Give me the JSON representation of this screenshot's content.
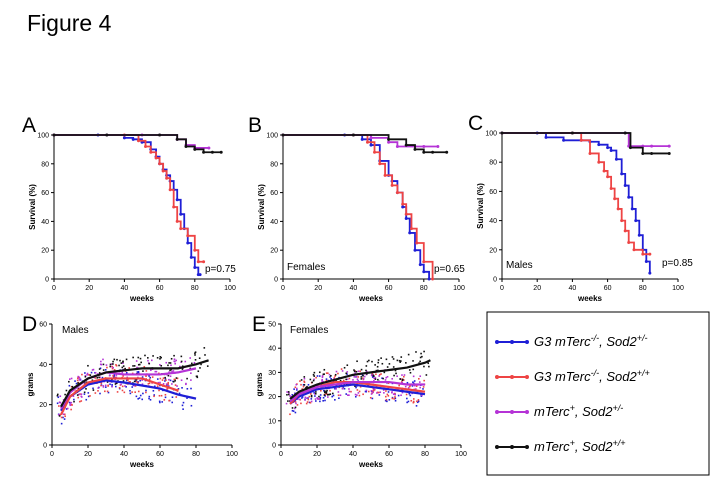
{
  "figure": {
    "title": "Figure 4"
  },
  "colors": {
    "g3_het": "#1f1fd6",
    "g3_wt": "#ee4444",
    "m_het": "#b533d6",
    "m_wt": "#111111"
  },
  "chart_data": [
    {
      "id": "A",
      "type": "line",
      "panel_label": "A",
      "xlabel": "weeks",
      "ylabel": "Survival (%)",
      "xlim": [
        0,
        100
      ],
      "ylim": [
        0,
        100
      ],
      "xticks": [
        0,
        20,
        40,
        60,
        80,
        100
      ],
      "yticks": [
        0,
        20,
        40,
        60,
        80,
        100
      ],
      "annotation": "p=0.75",
      "subtitle": "",
      "series": [
        {
          "name": "G3 mTerc-/-, Sod2+/-",
          "color_key": "g3_het",
          "x": [
            0,
            25,
            40,
            45,
            50,
            55,
            58,
            60,
            62,
            64,
            66,
            68,
            70,
            72,
            74,
            76,
            78,
            80,
            82,
            83
          ],
          "y": [
            100,
            100,
            98,
            97,
            95,
            90,
            85,
            80,
            76,
            72,
            68,
            62,
            55,
            45,
            35,
            25,
            15,
            8,
            3,
            3
          ]
        },
        {
          "name": "G3 mTerc-/-, Sod2+/+",
          "color_key": "g3_wt",
          "x": [
            0,
            40,
            48,
            52,
            55,
            58,
            60,
            62,
            64,
            66,
            68,
            70,
            72,
            76,
            80,
            82,
            85
          ],
          "y": [
            100,
            100,
            96,
            92,
            88,
            84,
            80,
            75,
            70,
            62,
            50,
            40,
            35,
            30,
            20,
            12,
            12
          ]
        },
        {
          "name": "mTerc+, Sod2+/-",
          "color_key": "m_het",
          "x": [
            0,
            30,
            50,
            60,
            70,
            75,
            80,
            88
          ],
          "y": [
            100,
            100,
            100,
            100,
            97,
            93,
            91,
            91
          ]
        },
        {
          "name": "mTerc+, Sod2+/+",
          "color_key": "m_wt",
          "x": [
            0,
            30,
            60,
            70,
            75,
            80,
            85,
            90,
            95
          ],
          "y": [
            100,
            100,
            100,
            97,
            92,
            90,
            88,
            88,
            88
          ]
        }
      ]
    },
    {
      "id": "B",
      "type": "line",
      "panel_label": "B",
      "xlabel": "weeks",
      "ylabel": "Survival (%)",
      "xlim": [
        0,
        100
      ],
      "ylim": [
        0,
        100
      ],
      "xticks": [
        0,
        20,
        40,
        60,
        80,
        100
      ],
      "yticks": [
        0,
        20,
        40,
        60,
        80,
        100
      ],
      "annotation": "p=0.65",
      "subtitle": "Females",
      "series": [
        {
          "name": "G3 mTerc-/-, Sod2+/-",
          "color_key": "g3_het",
          "x": [
            0,
            35,
            45,
            50,
            55,
            60,
            62,
            65,
            68,
            70,
            72,
            75,
            78,
            80,
            83
          ],
          "y": [
            100,
            100,
            97,
            93,
            82,
            72,
            68,
            60,
            50,
            42,
            32,
            20,
            10,
            5,
            0
          ]
        },
        {
          "name": "G3 mTerc-/-, Sod2+/+",
          "color_key": "g3_wt",
          "x": [
            0,
            40,
            48,
            52,
            55,
            58,
            62,
            65,
            68,
            70,
            73,
            76,
            80,
            85
          ],
          "y": [
            100,
            100,
            95,
            88,
            80,
            72,
            65,
            60,
            52,
            45,
            35,
            25,
            12,
            0
          ]
        },
        {
          "name": "mTerc+, Sod2+/-",
          "color_key": "m_het",
          "x": [
            0,
            40,
            50,
            60,
            65,
            75,
            80,
            88
          ],
          "y": [
            100,
            100,
            98,
            95,
            92,
            92,
            92,
            92
          ]
        },
        {
          "name": "mTerc+, Sod2+/+",
          "color_key": "m_wt",
          "x": [
            0,
            40,
            60,
            70,
            75,
            80,
            85,
            93
          ],
          "y": [
            100,
            100,
            97,
            93,
            90,
            88,
            88,
            88
          ]
        }
      ]
    },
    {
      "id": "C",
      "type": "line",
      "panel_label": "C",
      "xlabel": "weeks",
      "ylabel": "Survival (%)",
      "xlim": [
        0,
        100
      ],
      "ylim": [
        0,
        100
      ],
      "xticks": [
        0,
        20,
        40,
        60,
        80,
        100
      ],
      "yticks": [
        0,
        20,
        40,
        60,
        80,
        100
      ],
      "annotation": "p=0.85",
      "subtitle": "Males",
      "series": [
        {
          "name": "G3 mTerc-/-, Sod2+/-",
          "color_key": "g3_het",
          "x": [
            0,
            20,
            25,
            35,
            45,
            50,
            55,
            60,
            62,
            65,
            68,
            70,
            72,
            74,
            76,
            78,
            80,
            82,
            84
          ],
          "y": [
            100,
            100,
            97,
            95,
            95,
            94,
            92,
            90,
            88,
            82,
            72,
            64,
            56,
            48,
            40,
            30,
            20,
            12,
            4
          ]
        },
        {
          "name": "G3 mTerc-/-, Sod2+/+",
          "color_key": "g3_wt",
          "x": [
            0,
            40,
            45,
            50,
            55,
            58,
            60,
            62,
            64,
            66,
            68,
            70,
            72,
            75,
            80,
            84
          ],
          "y": [
            100,
            100,
            95,
            86,
            80,
            74,
            70,
            62,
            55,
            48,
            40,
            33,
            25,
            20,
            17,
            17
          ]
        },
        {
          "name": "mTerc+, Sod2+/-",
          "color_key": "m_het",
          "x": [
            0,
            40,
            70,
            72,
            80,
            85,
            95
          ],
          "y": [
            100,
            100,
            100,
            91,
            91,
            91,
            91
          ]
        },
        {
          "name": "mTerc+, Sod2+/+",
          "color_key": "m_wt",
          "x": [
            0,
            40,
            70,
            73,
            80,
            85,
            95
          ],
          "y": [
            100,
            100,
            100,
            90,
            86,
            86,
            86
          ]
        }
      ]
    },
    {
      "id": "D",
      "type": "scatter",
      "panel_label": "D",
      "xlabel": "weeks",
      "ylabel": "grams",
      "xlim": [
        0,
        100
      ],
      "ylim": [
        0,
        60
      ],
      "xticks": [
        0,
        20,
        40,
        60,
        80,
        100
      ],
      "yticks": [
        0,
        20,
        40,
        60
      ],
      "annotation": "",
      "subtitle": "Males",
      "series": [
        {
          "name": "G3 mTerc-/-, Sod2+/-",
          "color_key": "g3_het",
          "x": [
            5,
            10,
            20,
            30,
            40,
            50,
            60,
            70,
            80
          ],
          "y": [
            17,
            24,
            30,
            32,
            31,
            29.5,
            28,
            25,
            23
          ]
        },
        {
          "name": "G3 mTerc-/-, Sod2+/+",
          "color_key": "g3_wt",
          "x": [
            5,
            10,
            20,
            30,
            40,
            50,
            60,
            70
          ],
          "y": [
            15,
            24,
            31,
            33,
            33,
            33,
            30,
            27
          ]
        },
        {
          "name": "mTerc+, Sod2+/-",
          "color_key": "m_het",
          "x": [
            5,
            10,
            20,
            30,
            40,
            50,
            60,
            70,
            80
          ],
          "y": [
            18,
            26,
            33,
            36,
            35,
            35,
            35,
            36,
            38
          ]
        },
        {
          "name": "mTerc+, Sod2+/+",
          "color_key": "m_wt",
          "x": [
            5,
            10,
            20,
            30,
            40,
            50,
            60,
            70,
            80,
            87
          ],
          "y": [
            19,
            27,
            33,
            36,
            37,
            38,
            38,
            38,
            40,
            42
          ]
        }
      ]
    },
    {
      "id": "E",
      "type": "scatter",
      "panel_label": "E",
      "xlabel": "weeks",
      "ylabel": "grams",
      "xlim": [
        0,
        100
      ],
      "ylim": [
        0,
        50
      ],
      "xticks": [
        0,
        20,
        40,
        60,
        80,
        100
      ],
      "yticks": [
        0,
        10,
        20,
        30,
        40,
        50
      ],
      "annotation": "",
      "subtitle": "Females",
      "series": [
        {
          "name": "G3 mTerc-/-, Sod2+/-",
          "color_key": "g3_het",
          "x": [
            5,
            10,
            20,
            30,
            40,
            50,
            60,
            70,
            80
          ],
          "y": [
            17,
            20,
            23,
            24,
            25,
            24,
            23,
            22,
            21
          ]
        },
        {
          "name": "G3 mTerc-/-, Sod2+/+",
          "color_key": "g3_wt",
          "x": [
            5,
            10,
            20,
            30,
            40,
            50,
            60,
            70,
            80
          ],
          "y": [
            17,
            21,
            24,
            26,
            26,
            25,
            24,
            23,
            22
          ]
        },
        {
          "name": "mTerc+, Sod2+/-",
          "color_key": "m_het",
          "x": [
            5,
            10,
            20,
            30,
            40,
            50,
            60,
            70,
            80
          ],
          "y": [
            18,
            21,
            24,
            25,
            26,
            26,
            26,
            25,
            25
          ]
        },
        {
          "name": "mTerc+, Sod2+/+",
          "color_key": "m_wt",
          "x": [
            5,
            10,
            20,
            30,
            40,
            50,
            60,
            70,
            80,
            83
          ],
          "y": [
            19,
            22,
            25,
            27,
            29,
            30,
            31,
            32,
            34,
            35
          ]
        }
      ]
    }
  ],
  "legend": [
    {
      "color_key": "g3_het",
      "main": "G3 mTerc",
      "sup1": "-/-",
      "mid": ", Sod2",
      "sup2": "+/-"
    },
    {
      "color_key": "g3_wt",
      "main": "G3 mTerc",
      "sup1": "-/-",
      "mid": ", Sod2",
      "sup2": "+/+"
    },
    {
      "color_key": "m_het",
      "main": "mTerc",
      "sup1": "+",
      "mid": ", Sod2",
      "sup2": "+/-"
    },
    {
      "color_key": "m_wt",
      "main": "mTerc",
      "sup1": "+",
      "mid": ", Sod2",
      "sup2": "+/+"
    }
  ]
}
